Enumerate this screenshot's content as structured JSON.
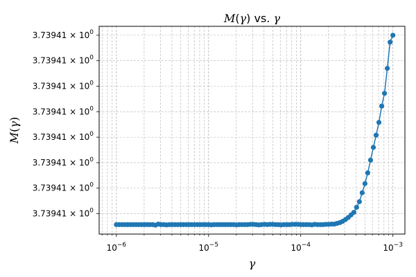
{
  "chart_data": {
    "type": "line",
    "title": "M(γ) vs. γ",
    "xlabel": "γ",
    "ylabel": "M(γ)",
    "x_scale": "log",
    "y_scale": "log",
    "grid": true,
    "grid_style": "dashed",
    "legend": "none",
    "xlim": [
      6.5e-07,
      0.00135
    ],
    "x_ticks": [
      {
        "value": 1e-06,
        "mantissa": "10",
        "exp": "−6"
      },
      {
        "value": 1e-05,
        "mantissa": "10",
        "exp": "−5"
      },
      {
        "value": 0.0001,
        "mantissa": "10",
        "exp": "−4"
      },
      {
        "value": 0.001,
        "mantissa": "10",
        "exp": "−3"
      }
    ],
    "y_tick_label": "3.73941 × 10",
    "y_tick_exp": "0",
    "y_tick_count": 8,
    "y_tick_relative_levels": [
      0.0,
      1.0,
      2.0,
      3.0,
      4.0,
      5.0,
      6.0,
      7.0
    ],
    "y_relative_range": [
      -0.8,
      7.35
    ],
    "series": [
      {
        "color": "#1f77b4",
        "marker": "circle",
        "x_start": 1e-06,
        "x_end": 0.001,
        "n_points": 100,
        "relative_level": [
          -0.43,
          -0.43,
          -0.43,
          -0.43,
          -0.43,
          -0.43,
          -0.43,
          -0.43,
          -0.43,
          -0.43,
          -0.43,
          -0.43,
          -0.43,
          -0.43,
          -0.45,
          -0.41,
          -0.43,
          -0.43,
          -0.44,
          -0.43,
          -0.43,
          -0.43,
          -0.43,
          -0.43,
          -0.43,
          -0.43,
          -0.43,
          -0.43,
          -0.43,
          -0.43,
          -0.43,
          -0.43,
          -0.43,
          -0.43,
          -0.44,
          -0.43,
          -0.43,
          -0.43,
          -0.43,
          -0.43,
          -0.43,
          -0.43,
          -0.43,
          -0.44,
          -0.43,
          -0.43,
          -0.43,
          -0.43,
          -0.42,
          -0.42,
          -0.43,
          -0.44,
          -0.43,
          -0.42,
          -0.43,
          -0.42,
          -0.42,
          -0.43,
          -0.43,
          -0.44,
          -0.43,
          -0.43,
          -0.43,
          -0.42,
          -0.42,
          -0.42,
          -0.43,
          -0.43,
          -0.43,
          -0.43,
          -0.44,
          -0.42,
          -0.43,
          -0.43,
          -0.43,
          -0.42,
          -0.42,
          -0.41,
          -0.41,
          -0.38,
          -0.35,
          -0.3,
          -0.23,
          -0.15,
          -0.05,
          0.05,
          0.25,
          0.47,
          0.82,
          1.18,
          1.6,
          2.1,
          2.6,
          3.08,
          3.58,
          4.22,
          4.72,
          5.7,
          6.73,
          7.0
        ]
      }
    ]
  }
}
